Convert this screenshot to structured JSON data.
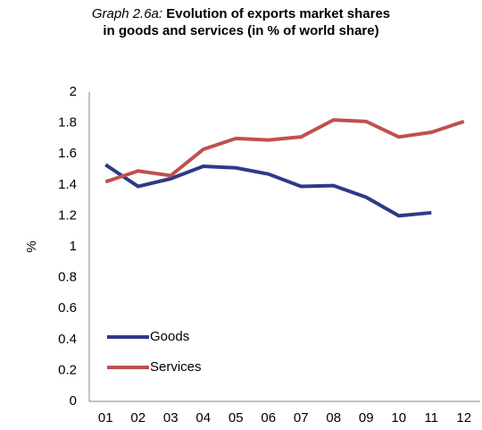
{
  "chart_data": {
    "type": "line",
    "title_label": "Graph 2.6a:",
    "title": "Evolution of exports market shares in goods and services (in % of world share)",
    "y_label": "%",
    "categories": [
      "01",
      "02",
      "03",
      "04",
      "05",
      "06",
      "07",
      "08",
      "09",
      "10",
      "11",
      "12"
    ],
    "series": [
      {
        "name": "Goods",
        "color": "#2e3a87",
        "values": [
          1.53,
          1.39,
          1.44,
          1.52,
          1.51,
          1.47,
          1.39,
          1.395,
          1.32,
          1.2,
          1.22,
          null
        ]
      },
      {
        "name": "Services",
        "color": "#c0504d",
        "values": [
          1.42,
          1.49,
          1.46,
          1.63,
          1.7,
          1.69,
          1.71,
          1.82,
          1.81,
          1.71,
          1.74,
          1.81
        ]
      }
    ],
    "ylim": [
      0,
      2
    ],
    "yticks": [
      0,
      0.2,
      0.4,
      0.6,
      0.8,
      1,
      1.2,
      1.4,
      1.6,
      1.8,
      2
    ],
    "grid": false,
    "legend": "lower left"
  }
}
